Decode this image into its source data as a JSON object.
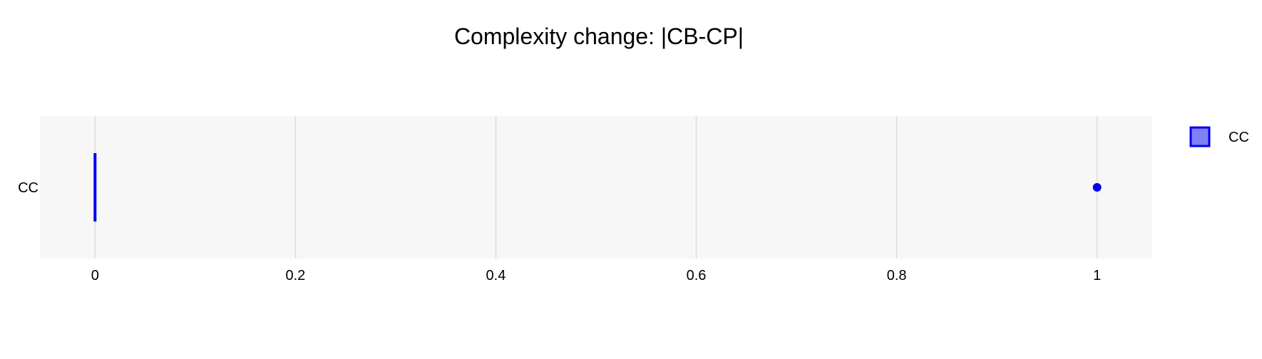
{
  "chart_data": {
    "type": "box",
    "title": "Complexity change: |CB-CP|",
    "xlabel": "",
    "ylabel": "",
    "xlim": [
      -0.055,
      1.055
    ],
    "x_ticks": [
      0,
      0.2,
      0.4,
      0.6,
      0.8,
      1
    ],
    "x_tick_labels": [
      "0",
      "0.2",
      "0.4",
      "0.6",
      "0.8",
      "1"
    ],
    "categories": [
      "CC"
    ],
    "series": [
      {
        "name": "CC",
        "orientation": "horizontal",
        "q1": 0,
        "median": 0,
        "q3": 0,
        "whisker_low": 0,
        "whisker_high": 0,
        "outliers": [
          1
        ]
      }
    ],
    "grid": true,
    "legend_position": "top-right",
    "colors": {
      "series": "#0000ee",
      "series_fill": "#8080f5",
      "plot_background": "#f7f7f7",
      "grid": "#dcdcdc"
    }
  }
}
